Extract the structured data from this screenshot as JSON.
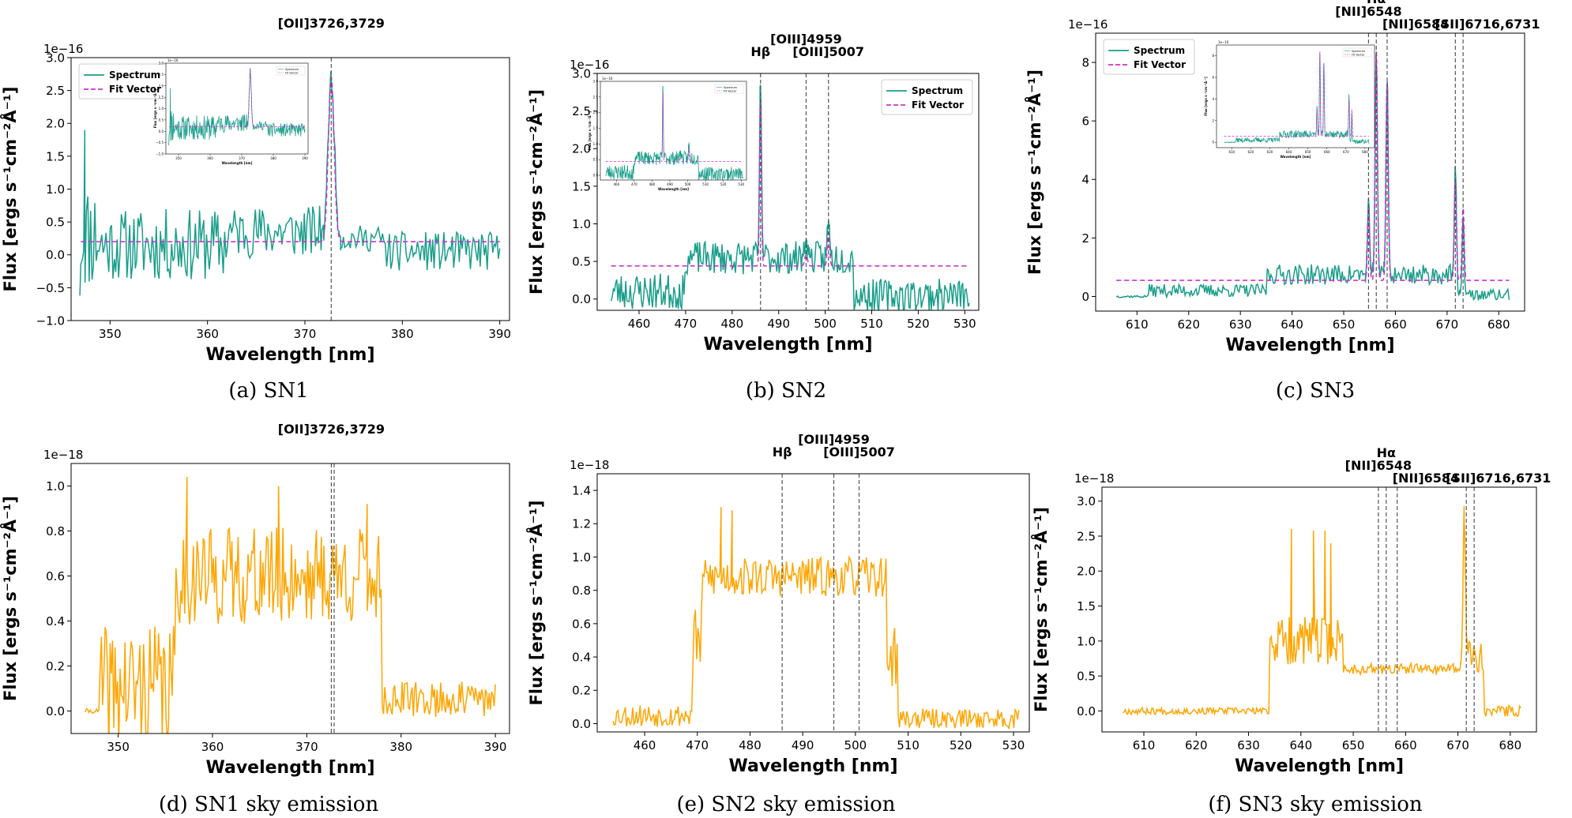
{
  "figure": {
    "captions": [
      "(a) SN1",
      "(b) SN2",
      "(c) SN3",
      "(d) SN1 sky emission",
      "(e) SN2 sky emission",
      "(f) SN3 sky emission"
    ]
  },
  "colors": {
    "spectrum": "#1a9e8a",
    "fit": "#cc33cc",
    "sky": "#ffa500",
    "vline": "#555555"
  },
  "chart_data": [
    {
      "id": "a",
      "type": "line",
      "xlabel": "Wavelength [nm]",
      "ylabel": "Flux [ergs s⁻¹cm⁻²Å⁻¹]",
      "scale_label": "1e−16",
      "xlim": [
        346,
        391
      ],
      "ylim": [
        -1.0,
        3.0
      ],
      "xticks": [
        350,
        360,
        370,
        380,
        390
      ],
      "yticks": [
        -1.0,
        -0.5,
        0.0,
        0.5,
        1.0,
        1.5,
        2.0,
        2.5,
        3.0
      ],
      "ytick_fmt": 1,
      "legend": [
        "Spectrum",
        "Fit Vector"
      ],
      "lines": [
        {
          "x": 372.7,
          "label": "[OII]3726,3729",
          "row": 0
        }
      ],
      "series": [
        {
          "name": "Spectrum",
          "kind": "noise",
          "seed": 11,
          "x_start": 347,
          "x_end": 390,
          "n": 300,
          "segments": [
            {
              "from": 347,
              "to": 349,
              "base": 0.3,
              "amp": 0.85
            },
            {
              "from": 349,
              "to": 362,
              "base": 0.15,
              "amp": 0.55
            },
            {
              "from": 362,
              "to": 372,
              "base": 0.35,
              "amp": 0.4
            },
            {
              "from": 372,
              "to": 378,
              "base": 0.25,
              "amp": 0.2
            },
            {
              "from": 378,
              "to": 390,
              "base": 0.05,
              "amp": 0.3
            }
          ],
          "peaks": [
            {
              "x": 372.7,
              "h": 2.45,
              "w": 0.32
            }
          ],
          "spikes": [
            {
              "x": 347.4,
              "y": 1.9
            },
            {
              "x": 346.9,
              "y": -0.62
            }
          ]
        },
        {
          "name": "Fit Vector",
          "kind": "model",
          "baseline": 0.2,
          "x_start": 347,
          "x_end": 390,
          "peaks": [
            {
              "x": 372.7,
              "h": 2.5,
              "w": 0.3
            }
          ]
        }
      ],
      "inset": true
    },
    {
      "id": "b",
      "type": "line",
      "xlabel": "Wavelength [nm]",
      "ylabel": "Flux [ergs s⁻¹cm⁻²Å⁻¹]",
      "scale_label": "1e−16",
      "xlim": [
        451,
        533
      ],
      "ylim": [
        -0.15,
        3.0
      ],
      "xticks": [
        460,
        470,
        480,
        490,
        500,
        510,
        520,
        530
      ],
      "yticks": [
        0.0,
        0.5,
        1.0,
        1.5,
        2.0,
        2.5,
        3.0
      ],
      "ytick_fmt": 1,
      "legend": [
        "Spectrum",
        "Fit Vector"
      ],
      "lines": [
        {
          "x": 486.1,
          "label": "Hβ",
          "row": 1
        },
        {
          "x": 495.9,
          "label": "[OIII]4959",
          "row": 0
        },
        {
          "x": 500.7,
          "label": "[OIII]5007",
          "row": 1
        }
      ],
      "series": [
        {
          "name": "Spectrum",
          "kind": "noise",
          "seed": 23,
          "x_start": 454,
          "x_end": 531,
          "n": 320,
          "segments": [
            {
              "from": 454,
              "to": 470,
              "base": 0.1,
              "amp": 0.25
            },
            {
              "from": 470,
              "to": 506,
              "base": 0.55,
              "amp": 0.22
            },
            {
              "from": 506,
              "to": 531,
              "base": 0.05,
              "amp": 0.22
            }
          ],
          "peaks": [
            {
              "x": 486.1,
              "h": 2.3,
              "w": 0.22
            },
            {
              "x": 495.9,
              "h": 0.25,
              "w": 0.3
            },
            {
              "x": 500.7,
              "h": 0.5,
              "w": 0.25
            }
          ],
          "spikes": []
        },
        {
          "name": "Fit Vector",
          "kind": "model",
          "baseline": 0.44,
          "x_start": 454,
          "x_end": 531,
          "peaks": [
            {
              "x": 486.1,
              "h": 2.2,
              "w": 0.2
            },
            {
              "x": 495.9,
              "h": 0.15,
              "w": 0.3
            },
            {
              "x": 500.7,
              "h": 0.45,
              "w": 0.25
            }
          ]
        }
      ],
      "inset": true
    },
    {
      "id": "c",
      "type": "line",
      "xlabel": "Wavelength [nm]",
      "ylabel": "Flux [ergs s⁻¹cm⁻²Å⁻¹]",
      "scale_label": "1e−16",
      "xlim": [
        602,
        685
      ],
      "ylim": [
        -0.5,
        9.0
      ],
      "xticks": [
        610,
        620,
        630,
        640,
        650,
        660,
        670,
        680
      ],
      "yticks": [
        0,
        2,
        4,
        6,
        8
      ],
      "ytick_fmt": 0,
      "legend": [
        "Spectrum",
        "Fit Vector"
      ],
      "lines": [
        {
          "x": 654.8,
          "label": "[NII]6548",
          "row": 1
        },
        {
          "x": 656.3,
          "label": "Hα",
          "row": 0
        },
        {
          "x": 658.4,
          "label": "[NII]6584",
          "row": 2
        },
        {
          "x": 671.6,
          "label": "[SII]6716,6731",
          "row": 2
        },
        {
          "x": 673.1,
          "label": "",
          "row": 2
        }
      ],
      "series": [
        {
          "name": "Spectrum",
          "kind": "noise",
          "seed": 37,
          "x_start": 606,
          "x_end": 682,
          "n": 320,
          "segments": [
            {
              "from": 606,
              "to": 612,
              "base": 0.0,
              "amp": 0.04
            },
            {
              "from": 612,
              "to": 635,
              "base": 0.2,
              "amp": 0.22
            },
            {
              "from": 635,
              "to": 672,
              "base": 0.75,
              "amp": 0.35
            },
            {
              "from": 672,
              "to": 682,
              "base": 0.05,
              "amp": 0.2
            }
          ],
          "peaks": [
            {
              "x": 654.8,
              "h": 2.6,
              "w": 0.2
            },
            {
              "x": 656.3,
              "h": 7.6,
              "w": 0.22
            },
            {
              "x": 658.4,
              "h": 6.6,
              "w": 0.22
            },
            {
              "x": 671.6,
              "h": 3.6,
              "w": 0.2
            },
            {
              "x": 673.1,
              "h": 2.6,
              "w": 0.2
            }
          ],
          "spikes": []
        },
        {
          "name": "Fit Vector",
          "kind": "model",
          "baseline": 0.55,
          "x_start": 606,
          "x_end": 682,
          "peaks": [
            {
              "x": 654.8,
              "h": 2.5,
              "w": 0.2
            },
            {
              "x": 656.3,
              "h": 7.9,
              "w": 0.22
            },
            {
              "x": 658.4,
              "h": 6.8,
              "w": 0.22
            },
            {
              "x": 671.6,
              "h": 3.4,
              "w": 0.2
            },
            {
              "x": 673.1,
              "h": 2.5,
              "w": 0.2
            }
          ]
        }
      ],
      "inset": true
    },
    {
      "id": "d",
      "type": "line",
      "xlabel": "Wavelength [nm]",
      "ylabel": "Flux [ergs s⁻¹cm⁻²Å⁻¹]",
      "scale_label": "1e−18",
      "xlim": [
        345,
        391.5
      ],
      "ylim": [
        -0.1,
        1.1
      ],
      "xticks": [
        350,
        360,
        370,
        380,
        390
      ],
      "yticks": [
        0.0,
        0.2,
        0.4,
        0.6,
        0.8,
        1.0
      ],
      "ytick_fmt": 1,
      "legend": [],
      "lines": [
        {
          "x": 372.6,
          "label": "[OII]3726,3729",
          "row": 0
        },
        {
          "x": 372.9,
          "label": "",
          "row": 0
        }
      ],
      "series": [
        {
          "name": "Sky",
          "kind": "noise",
          "seed": 41,
          "x_start": 346.5,
          "x_end": 390,
          "n": 330,
          "segments": [
            {
              "from": 346.5,
              "to": 348,
              "base": 0.0,
              "amp": 0.01
            },
            {
              "from": 348,
              "to": 356,
              "base": 0.1,
              "amp": 0.28
            },
            {
              "from": 356,
              "to": 378,
              "base": 0.6,
              "amp": 0.22
            },
            {
              "from": 378,
              "to": 390,
              "base": 0.05,
              "amp": 0.08
            }
          ],
          "peaks": [],
          "spikes": [
            {
              "x": 357.3,
              "y": 1.04
            },
            {
              "x": 367.0,
              "y": 1.0
            },
            {
              "x": 376.4,
              "y": 0.92
            }
          ]
        }
      ],
      "inset": false
    },
    {
      "id": "e",
      "type": "line",
      "xlabel": "Wavelength [nm]",
      "ylabel": "Flux [ergs s⁻¹cm⁻²Å⁻¹]",
      "scale_label": "1e−18",
      "xlim": [
        451,
        533
      ],
      "ylim": [
        -0.05,
        1.5
      ],
      "xticks": [
        460,
        470,
        480,
        490,
        500,
        510,
        520,
        530
      ],
      "yticks": [
        0.0,
        0.2,
        0.4,
        0.6,
        0.8,
        1.0,
        1.2,
        1.4
      ],
      "ytick_fmt": 1,
      "legend": [],
      "lines": [
        {
          "x": 486.1,
          "label": "Hβ",
          "row": 1
        },
        {
          "x": 495.9,
          "label": "[OIII]4959",
          "row": 0
        },
        {
          "x": 500.7,
          "label": "[OIII]5007",
          "row": 1
        }
      ],
      "series": [
        {
          "name": "Sky",
          "kind": "noise",
          "seed": 53,
          "x_start": 454,
          "x_end": 531,
          "n": 330,
          "segments": [
            {
              "from": 454,
              "to": 469,
              "base": 0.05,
              "amp": 0.07
            },
            {
              "from": 469,
              "to": 471,
              "base": 0.5,
              "amp": 0.2
            },
            {
              "from": 471,
              "to": 506,
              "base": 0.88,
              "amp": 0.12
            },
            {
              "from": 506,
              "to": 508,
              "base": 0.4,
              "amp": 0.2
            },
            {
              "from": 508,
              "to": 531,
              "base": 0.03,
              "amp": 0.06
            }
          ],
          "peaks": [],
          "spikes": [
            {
              "x": 474.5,
              "y": 1.3
            },
            {
              "x": 476.6,
              "y": 1.28
            }
          ]
        }
      ],
      "inset": false
    },
    {
      "id": "f",
      "type": "line",
      "xlabel": "Wavelength [nm]",
      "ylabel": "Flux [ergs s⁻¹cm⁻²Å⁻¹]",
      "scale_label": "1e−18",
      "xlim": [
        602,
        685
      ],
      "ylim": [
        -0.3,
        3.2
      ],
      "xticks": [
        610,
        620,
        630,
        640,
        650,
        660,
        670,
        680
      ],
      "yticks": [
        0.0,
        0.5,
        1.0,
        1.5,
        2.0,
        2.5,
        3.0
      ],
      "ytick_fmt": 1,
      "legend": [],
      "lines": [
        {
          "x": 654.8,
          "label": "[NII]6548",
          "row": 1
        },
        {
          "x": 656.3,
          "label": "Hα",
          "row": 0
        },
        {
          "x": 658.4,
          "label": "[NII]6584",
          "row": 2
        },
        {
          "x": 671.6,
          "label": "[SII]6716,6731",
          "row": 2
        },
        {
          "x": 673.1,
          "label": "",
          "row": 2
        }
      ],
      "series": [
        {
          "name": "Sky",
          "kind": "noise",
          "seed": 67,
          "x_start": 606,
          "x_end": 682,
          "n": 330,
          "segments": [
            {
              "from": 606,
              "to": 634,
              "base": 0.0,
              "amp": 0.05
            },
            {
              "from": 634,
              "to": 648,
              "base": 1.0,
              "amp": 0.35
            },
            {
              "from": 648,
              "to": 671,
              "base": 0.6,
              "amp": 0.08
            },
            {
              "from": 671,
              "to": 675,
              "base": 0.8,
              "amp": 0.25
            },
            {
              "from": 675,
              "to": 682,
              "base": 0.0,
              "amp": 0.08
            }
          ],
          "peaks": [
            {
              "x": 671.2,
              "h": 1.9,
              "w": 0.25
            }
          ],
          "spikes": [
            {
              "x": 638.2,
              "y": 2.6
            },
            {
              "x": 642.4,
              "y": 2.58
            },
            {
              "x": 644.6,
              "y": 2.58
            },
            {
              "x": 645.7,
              "y": 2.4
            }
          ]
        }
      ],
      "inset": false
    }
  ]
}
